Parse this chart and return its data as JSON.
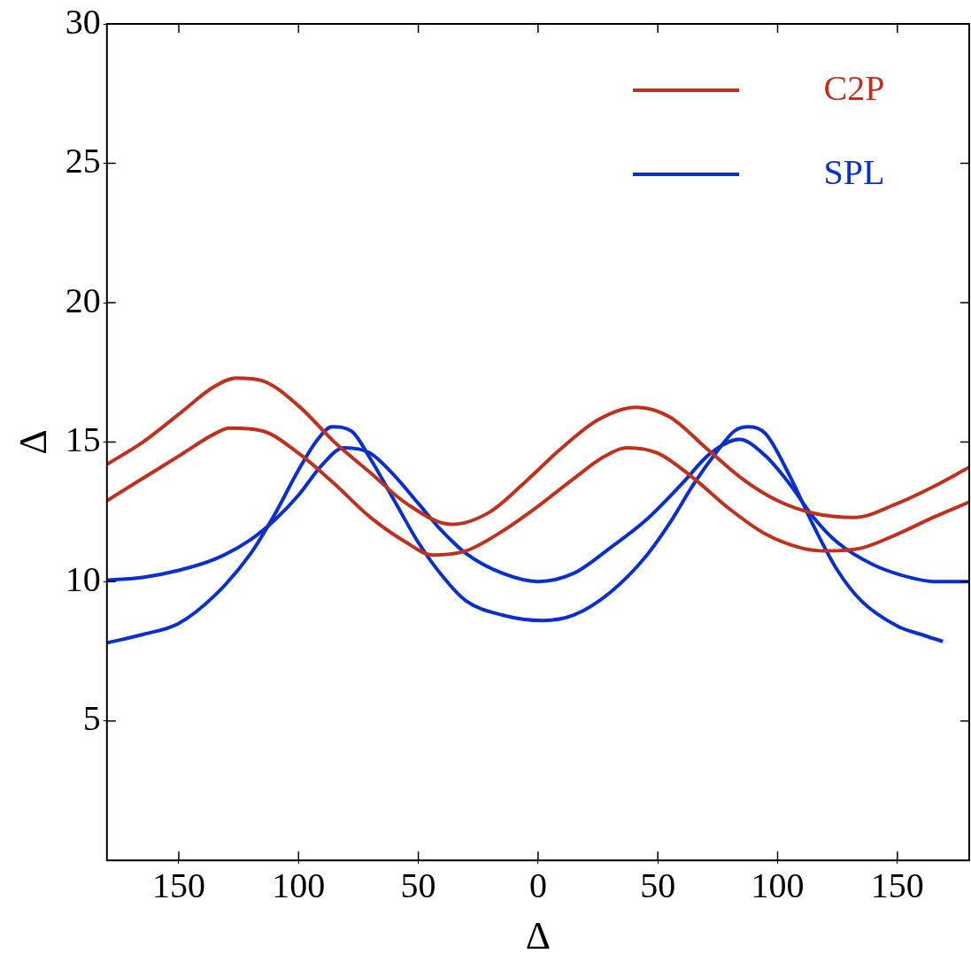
{
  "chart_data": {
    "type": "line",
    "xlabel": "Δ",
    "ylabel": "Δ",
    "xlim": [
      -180,
      180
    ],
    "xticks": [
      {
        "value": -150,
        "label": "150"
      },
      {
        "value": -100,
        "label": "100"
      },
      {
        "value": -50,
        "label": "50"
      },
      0,
      50,
      100,
      150
    ],
    "ylim": [
      0,
      30
    ],
    "yticks": [
      5,
      10,
      15,
      20,
      25,
      30
    ],
    "grid": false,
    "legend": "top right",
    "marker": "none",
    "line_style": "solid",
    "series": [
      {
        "name": "C2P",
        "color": "#c0301c",
        "x": [
          -180,
          -165,
          -150,
          -135,
          -126,
          -115,
          -100,
          -85,
          -70,
          -55,
          -36,
          -20,
          -5,
          10,
          25,
          41,
          55,
          70,
          85,
          100,
          115,
          132,
          150,
          165,
          180
        ],
        "values": [
          14.2,
          15.0,
          16.0,
          17.0,
          17.3,
          17.2,
          16.3,
          15.0,
          13.9,
          12.8,
          12.05,
          12.5,
          13.6,
          14.8,
          15.8,
          16.25,
          15.9,
          14.8,
          13.7,
          12.9,
          12.45,
          12.3,
          12.8,
          13.4,
          14.1
        ]
      },
      {
        "color": "#c0301c",
        "x": [
          -180,
          -165,
          -150,
          -135,
          -129,
          -115,
          -100,
          -85,
          -70,
          -55,
          -44,
          -30,
          -15,
          0,
          15,
          28,
          37,
          50,
          65,
          80,
          95,
          110,
          120,
          135,
          150,
          165,
          180
        ],
        "values": [
          12.9,
          13.7,
          14.5,
          15.3,
          15.5,
          15.4,
          14.6,
          13.5,
          12.3,
          11.4,
          10.95,
          11.1,
          11.8,
          12.7,
          13.7,
          14.5,
          14.8,
          14.6,
          13.7,
          12.6,
          11.7,
          11.2,
          11.1,
          11.2,
          11.7,
          12.3,
          12.85
        ]
      },
      {
        "name": "SPL",
        "color": "#0a2fd0",
        "x": [
          -180,
          -165,
          -150,
          -135,
          -120,
          -110,
          -100,
          -90,
          -81,
          -70,
          -60,
          -50,
          -40,
          -30,
          -15,
          0,
          15,
          30,
          45,
          60,
          72,
          84,
          95,
          105,
          115,
          125,
          140,
          155,
          165,
          180
        ],
        "values": [
          10.05,
          10.15,
          10.4,
          10.8,
          11.5,
          12.2,
          13.1,
          14.2,
          14.8,
          14.6,
          13.8,
          12.8,
          11.8,
          11.0,
          10.3,
          10.0,
          10.3,
          11.2,
          12.2,
          13.5,
          14.6,
          15.1,
          14.5,
          13.5,
          12.3,
          11.4,
          10.6,
          10.15,
          10.0,
          10.0
        ]
      },
      {
        "color": "#0a2fd0",
        "x": [
          -180,
          -165,
          -150,
          -135,
          -120,
          -110,
          -100,
          -92,
          -86,
          -78,
          -70,
          -60,
          -50,
          -40,
          -30,
          -15,
          2,
          15,
          30,
          45,
          55,
          65,
          75,
          82,
          88,
          95,
          105,
          115,
          125,
          135,
          150,
          160,
          169
        ],
        "values": [
          7.8,
          8.1,
          8.5,
          9.5,
          11.0,
          12.4,
          14.0,
          15.1,
          15.55,
          15.4,
          14.4,
          12.9,
          11.4,
          10.2,
          9.3,
          8.8,
          8.6,
          8.8,
          9.6,
          10.9,
          12.1,
          13.5,
          14.7,
          15.4,
          15.55,
          15.3,
          13.8,
          12.0,
          10.4,
          9.3,
          8.4,
          8.1,
          7.85
        ]
      }
    ]
  }
}
